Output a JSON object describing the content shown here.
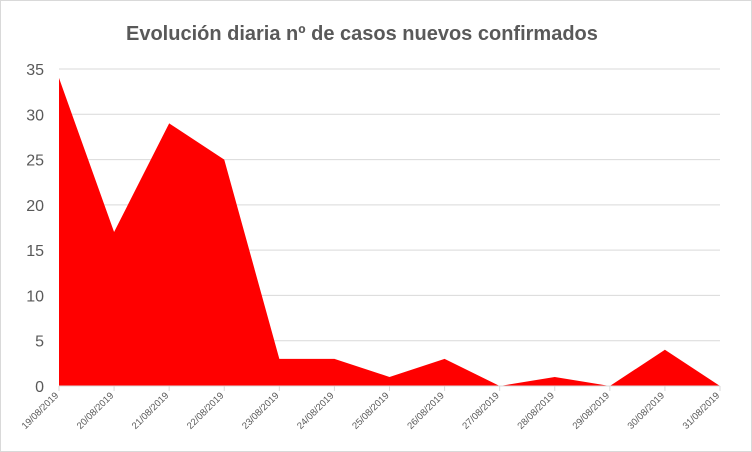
{
  "chart_data": {
    "type": "area",
    "title": "Evolución diaria nº de casos nuevos confirmados",
    "xlabel": "",
    "ylabel": "",
    "categories": [
      "19/08/2019",
      "20/08/2019",
      "21/08/2019",
      "22/08/2019",
      "23/08/2019",
      "24/08/2019",
      "25/08/2019",
      "26/08/2019",
      "27/08/2019",
      "28/08/2019",
      "29/08/2019",
      "30/08/2019",
      "31/08/2019"
    ],
    "values": [
      34,
      17,
      29,
      25,
      3,
      3,
      1,
      3,
      0,
      1,
      0,
      4,
      0
    ],
    "ylim": [
      0,
      35
    ],
    "yticks": [
      0,
      5,
      10,
      15,
      20,
      25,
      30,
      35
    ],
    "grid": true,
    "legend": "none",
    "fill_color": "#ff0000"
  }
}
